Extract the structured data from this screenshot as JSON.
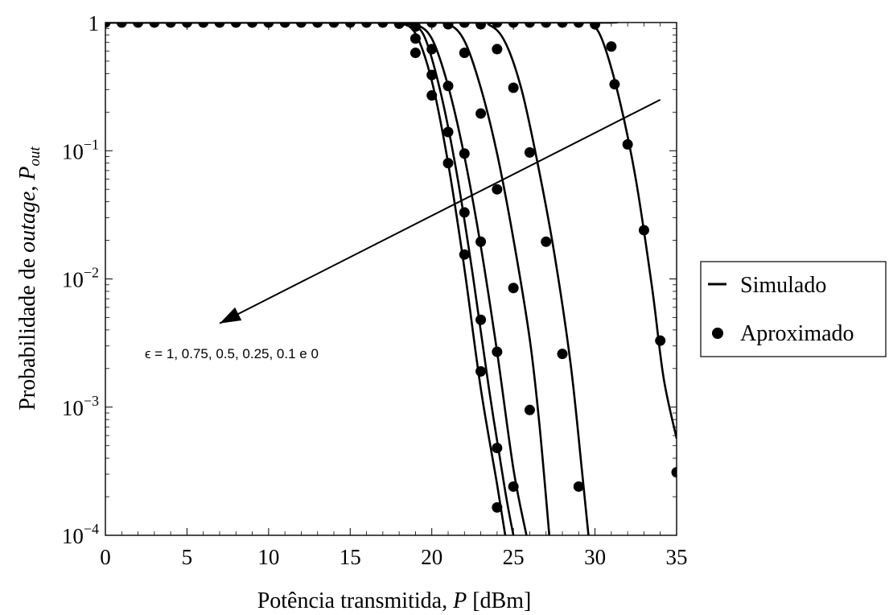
{
  "chart_data": {
    "type": "line",
    "xlabel_prefix": "Potência transmitida, ",
    "xlabel_var": "P",
    "xlabel_unit": " [dBm]",
    "ylabel_prefix": "Probabilidade de ",
    "ylabel_italic": "outage",
    "ylabel_sep": ", ",
    "ylabel_var": "P",
    "ylabel_sub": "out",
    "xlim": [
      0,
      35
    ],
    "ylim": [
      0.0001,
      1
    ],
    "yscale": "log",
    "grid": false,
    "legend_position": "right",
    "x_ticks": [
      0,
      5,
      10,
      15,
      20,
      25,
      30,
      35
    ],
    "y_ticks": [
      {
        "value": 1,
        "base": "1",
        "exp": ""
      },
      {
        "value": 0.1,
        "base": "10",
        "exp": "−1"
      },
      {
        "value": 0.01,
        "base": "10",
        "exp": "−2"
      },
      {
        "value": 0.001,
        "base": "10",
        "exp": "−3"
      },
      {
        "value": 0.0001,
        "base": "10",
        "exp": "−4"
      }
    ],
    "legend": [
      {
        "label": "Simulado",
        "marker": "line"
      },
      {
        "label": "Aproximado",
        "marker": "dot"
      }
    ],
    "annotation": {
      "text": "ϵ = 1, 0.75, 0.5, 0.25, 0.1 e 0",
      "arrow_from": [
        34,
        0.25
      ],
      "arrow_to": [
        7,
        0.0045
      ]
    },
    "series": [
      {
        "curve": [
          [
            0,
            1
          ],
          [
            17,
            1
          ],
          [
            18,
            0.99
          ],
          [
            19,
            0.82
          ],
          [
            20,
            0.35
          ],
          [
            21,
            0.08
          ],
          [
            22,
            0.012
          ],
          [
            23,
            0.0014
          ],
          [
            24,
            0.00025
          ],
          [
            24.5,
            0.0001
          ]
        ],
        "points": [
          [
            0,
            1
          ],
          [
            1,
            1
          ],
          [
            2,
            1
          ],
          [
            3,
            1
          ],
          [
            4,
            1
          ],
          [
            5,
            1
          ],
          [
            6,
            1
          ],
          [
            7,
            1
          ],
          [
            8,
            1
          ],
          [
            9,
            1
          ],
          [
            10,
            1
          ],
          [
            11,
            1
          ],
          [
            12,
            1
          ],
          [
            13,
            1
          ],
          [
            14,
            1
          ],
          [
            15,
            1
          ],
          [
            16,
            1
          ],
          [
            17,
            1
          ],
          [
            18,
            0.98
          ],
          [
            19,
            0.58
          ],
          [
            20,
            0.27
          ],
          [
            21,
            0.08
          ],
          [
            22,
            0.0155
          ],
          [
            23,
            0.0019
          ],
          [
            24,
            0.000165
          ]
        ]
      },
      {
        "curve": [
          [
            0,
            1
          ],
          [
            17.5,
            1
          ],
          [
            18.5,
            0.98
          ],
          [
            19.5,
            0.8
          ],
          [
            20.5,
            0.3
          ],
          [
            21.5,
            0.07
          ],
          [
            22.5,
            0.011
          ],
          [
            23.5,
            0.0014
          ],
          [
            24.5,
            0.00022
          ],
          [
            25,
            0.0001
          ]
        ],
        "points": [
          [
            19,
            0.75
          ],
          [
            20,
            0.39
          ],
          [
            21,
            0.14
          ],
          [
            22,
            0.033
          ],
          [
            23,
            0.0048
          ],
          [
            24,
            0.00048
          ]
        ]
      },
      {
        "curve": [
          [
            0,
            1
          ],
          [
            18,
            1
          ],
          [
            19,
            0.97
          ],
          [
            20,
            0.75
          ],
          [
            21,
            0.32
          ],
          [
            22,
            0.09
          ],
          [
            23,
            0.018
          ],
          [
            24,
            0.0027
          ],
          [
            25,
            0.00033
          ],
          [
            25.8,
            0.0001
          ]
        ],
        "points": [
          [
            19,
            0.93
          ],
          [
            20,
            0.62
          ],
          [
            21,
            0.32
          ],
          [
            22,
            0.095
          ],
          [
            23,
            0.0195
          ],
          [
            24,
            0.0027
          ],
          [
            25,
            0.00024
          ]
        ]
      },
      {
        "curve": [
          [
            0,
            1
          ],
          [
            19.5,
            1
          ],
          [
            21,
            0.97
          ],
          [
            22,
            0.72
          ],
          [
            23,
            0.31
          ],
          [
            24,
            0.095
          ],
          [
            25,
            0.0205
          ],
          [
            26,
            0.0034
          ],
          [
            26.6,
            0.00072
          ],
          [
            27.2,
            0.0001
          ]
        ],
        "points": [
          [
            20,
            1
          ],
          [
            21,
            0.97
          ],
          [
            22,
            0.58
          ],
          [
            23,
            0.195
          ],
          [
            24,
            0.05
          ],
          [
            25,
            0.0085
          ],
          [
            26,
            0.00095
          ]
        ]
      },
      {
        "curve": [
          [
            0,
            1
          ],
          [
            22,
            1
          ],
          [
            23.5,
            0.96
          ],
          [
            24.5,
            0.7
          ],
          [
            25.5,
            0.3
          ],
          [
            26.5,
            0.078
          ],
          [
            27.5,
            0.016
          ],
          [
            28.5,
            0.0022
          ],
          [
            29.2,
            0.00032
          ],
          [
            29.6,
            0.0001
          ]
        ],
        "points": [
          [
            21,
            1
          ],
          [
            22,
            1
          ],
          [
            23,
            0.97
          ],
          [
            24,
            0.62
          ],
          [
            25,
            0.31
          ],
          [
            26,
            0.097
          ],
          [
            27,
            0.0195
          ],
          [
            28,
            0.0026
          ],
          [
            29,
            0.00024
          ]
        ]
      },
      {
        "curve": [
          [
            0,
            1
          ],
          [
            29,
            1
          ],
          [
            29.8,
            0.97
          ],
          [
            30.5,
            0.7
          ],
          [
            31.5,
            0.25
          ],
          [
            32.5,
            0.06
          ],
          [
            33.5,
            0.0085
          ],
          [
            34.2,
            0.0017
          ],
          [
            35,
            0.00057
          ]
        ],
        "points": [
          [
            22,
            1
          ],
          [
            23,
            1
          ],
          [
            24,
            1
          ],
          [
            25,
            1
          ],
          [
            26,
            1
          ],
          [
            27,
            1
          ],
          [
            28,
            1
          ],
          [
            29,
            1
          ],
          [
            30,
            0.97
          ],
          [
            31,
            0.65
          ],
          [
            31.2,
            0.33
          ],
          [
            32,
            0.112
          ],
          [
            33,
            0.024
          ],
          [
            34,
            0.0033
          ],
          [
            35,
            0.00031
          ]
        ]
      }
    ]
  }
}
